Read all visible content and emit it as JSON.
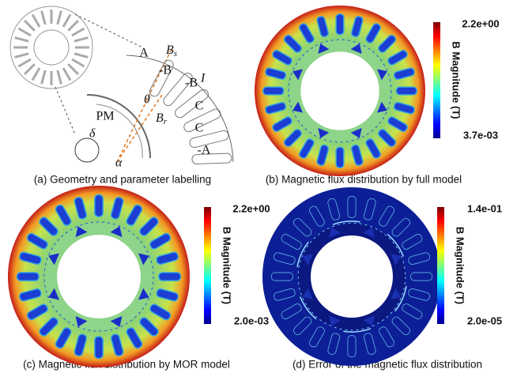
{
  "geometry": {
    "caption": "(a) Geometry and parameter labelling",
    "phases": [
      "A",
      "-B",
      "-B",
      "C",
      "C",
      "-A"
    ],
    "magnet": "PM",
    "angle": "θ",
    "current": "I",
    "gap": "δ",
    "pole_arc": "α",
    "stator_field": {
      "base": "B",
      "sub": "s"
    },
    "rotor_field": {
      "base": "B",
      "sub": "r"
    }
  },
  "panels": [
    {
      "caption": "(b) Magnetic flux distribution by full model",
      "colorbar": {
        "label": "B Magnitude (T)",
        "max": "2.2e+00",
        "min": "3.7e-03"
      }
    },
    {
      "caption": "(c) Magnetic flux distribution by MOR model",
      "colorbar": {
        "label": "B Magnitude (T)",
        "max": "2.2e+00",
        "min": "2.0e-03"
      }
    },
    {
      "caption": "(d) Error of the magnetic flux distribution",
      "colorbar": {
        "label": "B Magnitude (T)",
        "max": "1.4e-01",
        "min": "2.0e-05"
      }
    }
  ]
}
